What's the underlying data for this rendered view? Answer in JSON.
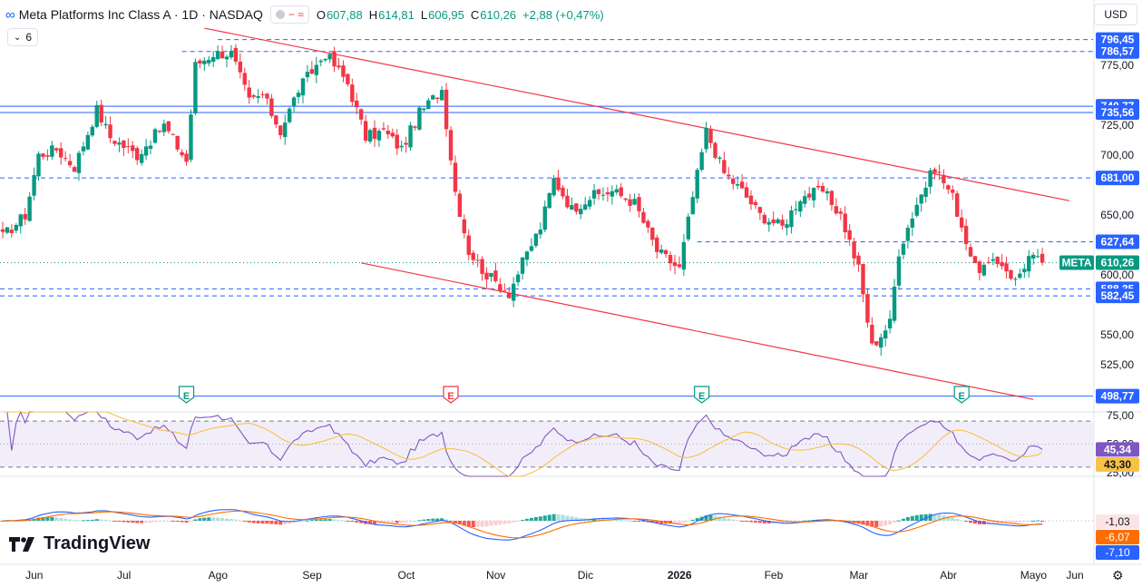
{
  "header": {
    "symbol_icon": "infinity-logo-icon",
    "title": "Meta Platforms Inc Class A · 1D · NASDAQ",
    "compare_icons": "− ≈",
    "ohlc": [
      {
        "label": "O",
        "value": "607,88"
      },
      {
        "label": "H",
        "value": "614,81"
      },
      {
        "label": "L",
        "value": "606,95"
      },
      {
        "label": "C",
        "value": "610,26"
      }
    ],
    "change": "+2,88 (+0,47%)"
  },
  "indicator_toggle": {
    "icon": "chevron-down-icon",
    "count": "6"
  },
  "currency": "USD",
  "brand": {
    "icon": "tradingview-logo-icon",
    "name": "TradingView"
  },
  "settings_icon": "gear-icon",
  "colors": {
    "up": "#089981",
    "down": "#f23645",
    "level": "#2962ff",
    "channel": "#f23645",
    "rsi": "#7e57c2",
    "rsi_ma": "#f7c248",
    "macd": "#2962ff",
    "signal": "#ff6d00"
  },
  "chart_data": {
    "type": "candlestick",
    "symbol": "META",
    "price_axis": {
      "range": [
        499,
        805
      ],
      "ticks": [
        "775,00",
        "725,00",
        "700,00",
        "650,00",
        "600,00",
        "550,00",
        "525,00"
      ],
      "tick_values": [
        775,
        725,
        700,
        650,
        600,
        550,
        525
      ]
    },
    "time_axis": {
      "labels": [
        "Jun",
        "Jul",
        "Ago",
        "Sep",
        "Oct",
        "Nov",
        "Dic",
        "2026",
        "Feb",
        "Mar",
        "Abr",
        "Mayo",
        "Jun"
      ],
      "bold": [
        "2026"
      ]
    },
    "levels": [
      {
        "value": 796.45,
        "label": "796,45",
        "style": "dashed",
        "from_bar": 48
      },
      {
        "value": 786.57,
        "label": "786,57",
        "style": "dashed",
        "from_bar": 40
      },
      {
        "value": 740.77,
        "label": "740,77",
        "style": "solid",
        "from_bar": 0
      },
      {
        "value": 735.56,
        "label": "735,56",
        "style": "solid",
        "from_bar": 0
      },
      {
        "value": 681.0,
        "label": "681,00",
        "style": "dashed",
        "from_bar": 0
      },
      {
        "value": 627.64,
        "label": "627,64",
        "style": "dashed",
        "from_bar": 155
      },
      {
        "value": 588.35,
        "label": "588,35",
        "style": "dashed",
        "from_bar": 0
      },
      {
        "value": 582.45,
        "label": "582,45",
        "style": "dashed",
        "from_bar": 0
      },
      {
        "value": 498.77,
        "label": "498,77",
        "style": "solid",
        "from_bar": 0
      }
    ],
    "last_price": {
      "symbol": "META",
      "value": 610.26,
      "label": "610,26"
    },
    "channel": [
      {
        "bar1": 45,
        "price1": 806,
        "bar2": 238,
        "price2": 662
      },
      {
        "bar1": 80,
        "price1": 610,
        "bar2": 230,
        "price2": 496
      }
    ],
    "earnings": [
      {
        "bar": 41,
        "color": "green"
      },
      {
        "bar": 100,
        "color": "red"
      },
      {
        "bar": 156,
        "color": "green"
      },
      {
        "bar": 214,
        "color": "green"
      }
    ],
    "anchors": [
      [
        0,
        632
      ],
      [
        5,
        650
      ],
      [
        8,
        700
      ],
      [
        12,
        705
      ],
      [
        16,
        690
      ],
      [
        21,
        738
      ],
      [
        24,
        715
      ],
      [
        30,
        700
      ],
      [
        36,
        725
      ],
      [
        41,
        695
      ],
      [
        43,
        775
      ],
      [
        47,
        785
      ],
      [
        51,
        785
      ],
      [
        55,
        745
      ],
      [
        58,
        750
      ],
      [
        62,
        720
      ],
      [
        66,
        755
      ],
      [
        72,
        785
      ],
      [
        77,
        760
      ],
      [
        81,
        715
      ],
      [
        85,
        720
      ],
      [
        89,
        705
      ],
      [
        93,
        735
      ],
      [
        98,
        755
      ],
      [
        101,
        670
      ],
      [
        104,
        620
      ],
      [
        108,
        600
      ],
      [
        113,
        585
      ],
      [
        116,
        610
      ],
      [
        120,
        640
      ],
      [
        123,
        680
      ],
      [
        127,
        655
      ],
      [
        131,
        665
      ],
      [
        136,
        670
      ],
      [
        141,
        660
      ],
      [
        146,
        620
      ],
      [
        151,
        605
      ],
      [
        154,
        665
      ],
      [
        157,
        720
      ],
      [
        161,
        685
      ],
      [
        165,
        670
      ],
      [
        169,
        650
      ],
      [
        174,
        640
      ],
      [
        178,
        665
      ],
      [
        183,
        670
      ],
      [
        187,
        650
      ],
      [
        191,
        605
      ],
      [
        194,
        540
      ],
      [
        198,
        560
      ],
      [
        200,
        620
      ],
      [
        204,
        660
      ],
      [
        208,
        690
      ],
      [
        212,
        665
      ],
      [
        217,
        605
      ],
      [
        223,
        610
      ],
      [
        226,
        595
      ],
      [
        229,
        615
      ],
      [
        232,
        610
      ]
    ],
    "rsi": {
      "last": 45.34,
      "last_label": "45,34",
      "ma_last": 43.3,
      "ma_label": "43,30",
      "ticks": [
        "75,00",
        "50,00",
        "25,00"
      ],
      "bands": [
        70,
        30
      ],
      "range": [
        22,
        78
      ]
    },
    "macd": {
      "hist_last": -1.03,
      "hist_label": "-1,03",
      "signal_last": -6.07,
      "signal_label": "-6,07",
      "macd_last": -7.1,
      "macd_label": "-7,10"
    }
  }
}
